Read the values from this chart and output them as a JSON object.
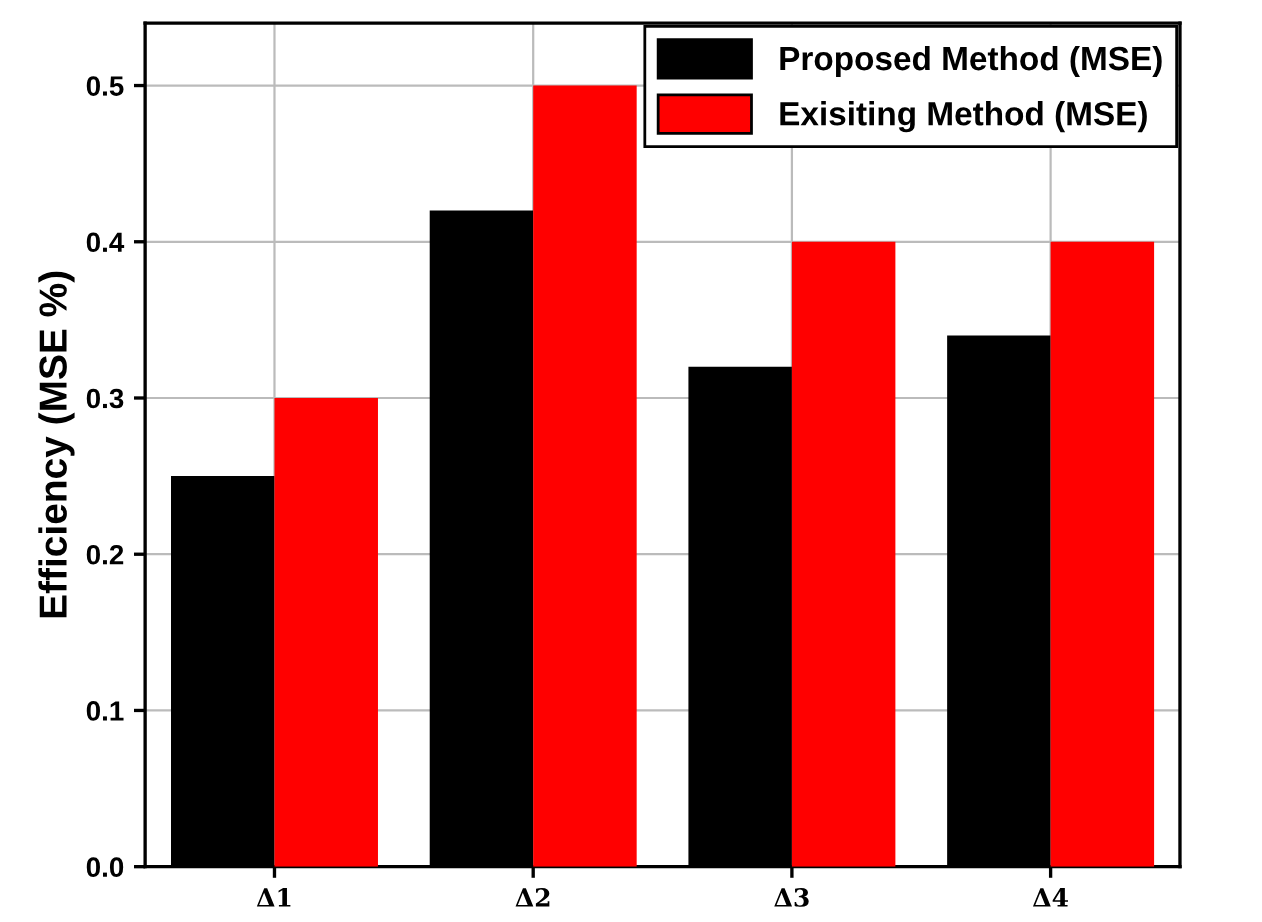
{
  "chart_data": {
    "type": "bar",
    "ylabel": "Efficiency (MSE %)",
    "categories": [
      "Δ1",
      "Δ2",
      "Δ3",
      "Δ4"
    ],
    "series": [
      {
        "name": "Proposed Method (MSE)",
        "color": "#000000",
        "values": [
          0.25,
          0.42,
          0.32,
          0.34
        ]
      },
      {
        "name": "Exisiting Method (MSE)",
        "color": "#ff0000",
        "values": [
          0.3,
          0.5,
          0.4,
          0.4
        ]
      }
    ],
    "ylim": [
      0,
      0.54
    ],
    "yticks": [
      {
        "value": 0,
        "label": "0.0"
      },
      0.1,
      0.2,
      0.3,
      0.4,
      0.5
    ],
    "grid": true,
    "legend": "top right"
  }
}
